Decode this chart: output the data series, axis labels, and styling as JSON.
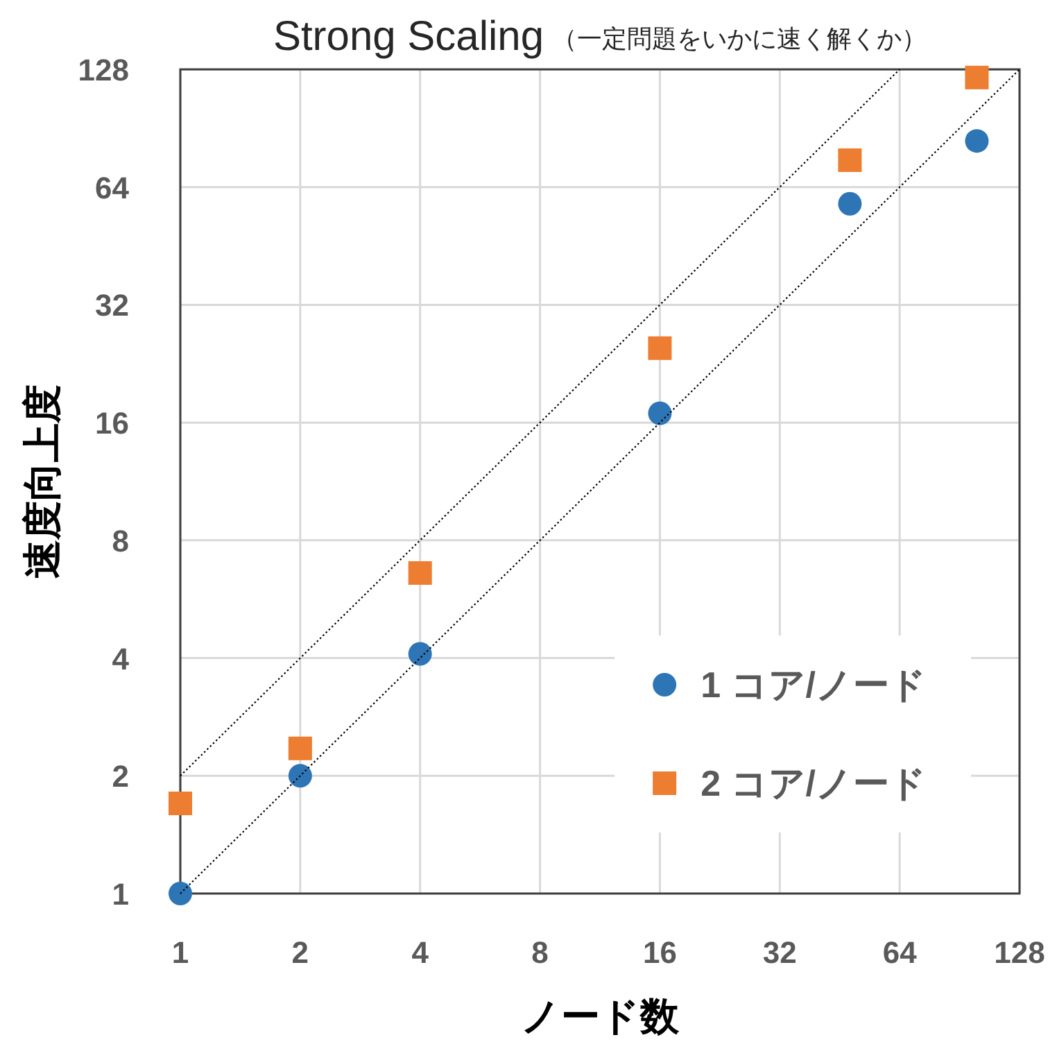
{
  "chart_data": {
    "type": "scatter",
    "title": "Strong Scaling",
    "subtitle": "（一定問題をいかに速く解くか）",
    "xlabel": "ノード数",
    "ylabel": "速度向上度",
    "log": "xy",
    "xlim": [
      1,
      128
    ],
    "ylim": [
      1,
      128
    ],
    "xticks": [
      1,
      2,
      4,
      8,
      16,
      32,
      64,
      128
    ],
    "yticks": [
      1,
      2,
      4,
      8,
      16,
      32,
      64,
      128
    ],
    "grid": true,
    "legend": "bottom right",
    "series": [
      {
        "name": "1 コア/ノード",
        "color": "#2e75b6",
        "marker": "circle",
        "x": [
          1,
          2,
          4,
          16,
          48,
          100
        ],
        "values": [
          1,
          2,
          4.1,
          16.9,
          58,
          84
        ]
      },
      {
        "name": "2 コア/ノード",
        "color": "#ed7d31",
        "marker": "square",
        "x": [
          1,
          2,
          4,
          16,
          48,
          100
        ],
        "values": [
          1.7,
          2.35,
          6.6,
          24.8,
          75,
          122
        ]
      },
      {
        "type": "line",
        "color": "#000000",
        "line_style": "dotted",
        "marker": "none",
        "x": [
          1,
          128
        ],
        "values": [
          1,
          128
        ]
      },
      {
        "type": "line",
        "color": "#000000",
        "line_style": "dotted",
        "marker": "none",
        "x": [
          1,
          64
        ],
        "values": [
          2,
          128
        ]
      }
    ]
  }
}
